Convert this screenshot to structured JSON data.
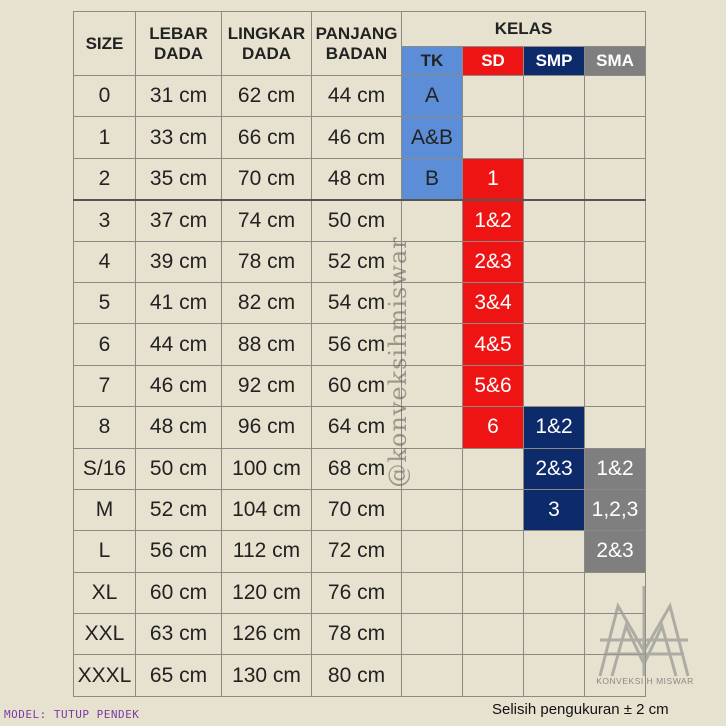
{
  "header": {
    "size": "SIZE",
    "lebar": [
      "LEBAR",
      "DADA"
    ],
    "lingkar": [
      "LINGKAR",
      "DADA"
    ],
    "panjang": [
      "PANJANG",
      "BADAN"
    ],
    "kelas": "KELAS",
    "levels": [
      "TK",
      "SD",
      "SMP",
      "SMA"
    ]
  },
  "colors": {
    "background": "#e7e2cf",
    "tk": "#5b8ed6",
    "sd": "#ee1414",
    "smp": "#0d2a6b",
    "sma": "#7f7f7f"
  },
  "rows": [
    {
      "size": "0",
      "lebar": "31 cm",
      "lingkar": "62 cm",
      "panjang": "44 cm",
      "tk": "A",
      "sd": "",
      "smp": "",
      "sma": ""
    },
    {
      "size": "1",
      "lebar": "33 cm",
      "lingkar": "66 cm",
      "panjang": "46 cm",
      "tk": "A&B",
      "sd": "",
      "smp": "",
      "sma": ""
    },
    {
      "size": "2",
      "lebar": "35 cm",
      "lingkar": "70 cm",
      "panjang": "48 cm",
      "tk": "B",
      "sd": "1",
      "smp": "",
      "sma": ""
    },
    {
      "size": "3",
      "lebar": "37 cm",
      "lingkar": "74 cm",
      "panjang": "50 cm",
      "tk": "",
      "sd": "1&2",
      "smp": "",
      "sma": ""
    },
    {
      "size": "4",
      "lebar": "39 cm",
      "lingkar": "78 cm",
      "panjang": "52 cm",
      "tk": "",
      "sd": "2&3",
      "smp": "",
      "sma": ""
    },
    {
      "size": "5",
      "lebar": "41 cm",
      "lingkar": "82 cm",
      "panjang": "54 cm",
      "tk": "",
      "sd": "3&4",
      "smp": "",
      "sma": ""
    },
    {
      "size": "6",
      "lebar": "44 cm",
      "lingkar": "88 cm",
      "panjang": "56 cm",
      "tk": "",
      "sd": "4&5",
      "smp": "",
      "sma": ""
    },
    {
      "size": "7",
      "lebar": "46 cm",
      "lingkar": "92 cm",
      "panjang": "60 cm",
      "tk": "",
      "sd": "5&6",
      "smp": "",
      "sma": ""
    },
    {
      "size": "8",
      "lebar": "48 cm",
      "lingkar": "96 cm",
      "panjang": "64 cm",
      "tk": "",
      "sd": "6",
      "smp": "1&2",
      "sma": ""
    },
    {
      "size": "S/16",
      "lebar": "50 cm",
      "lingkar": "100 cm",
      "panjang": "68 cm",
      "tk": "",
      "sd": "",
      "smp": "2&3",
      "sma": "1&2"
    },
    {
      "size": "M",
      "lebar": "52 cm",
      "lingkar": "104 cm",
      "panjang": "70 cm",
      "tk": "",
      "sd": "",
      "smp": "3",
      "sma": "1,2,3"
    },
    {
      "size": "L",
      "lebar": "56 cm",
      "lingkar": "112 cm",
      "panjang": "72 cm",
      "tk": "",
      "sd": "",
      "smp": "",
      "sma": "2&3"
    },
    {
      "size": "XL",
      "lebar": "60 cm",
      "lingkar": "120 cm",
      "panjang": "76 cm",
      "tk": "",
      "sd": "",
      "smp": "",
      "sma": ""
    },
    {
      "size": "XXL",
      "lebar": "63 cm",
      "lingkar": "126 cm",
      "panjang": "78 cm",
      "tk": "",
      "sd": "",
      "smp": "",
      "sma": ""
    },
    {
      "size": "XXXL",
      "lebar": "65 cm",
      "lingkar": "130 cm",
      "panjang": "80 cm",
      "tk": "",
      "sd": "",
      "smp": "",
      "sma": ""
    }
  ],
  "watermark": "@konveksihmiswar",
  "model_note": "MODEL: TUTUP PENDEK",
  "tolerance": "Selisih pengukuran ± 2 cm",
  "logo_text": "KONVEKSI H MISWAR"
}
